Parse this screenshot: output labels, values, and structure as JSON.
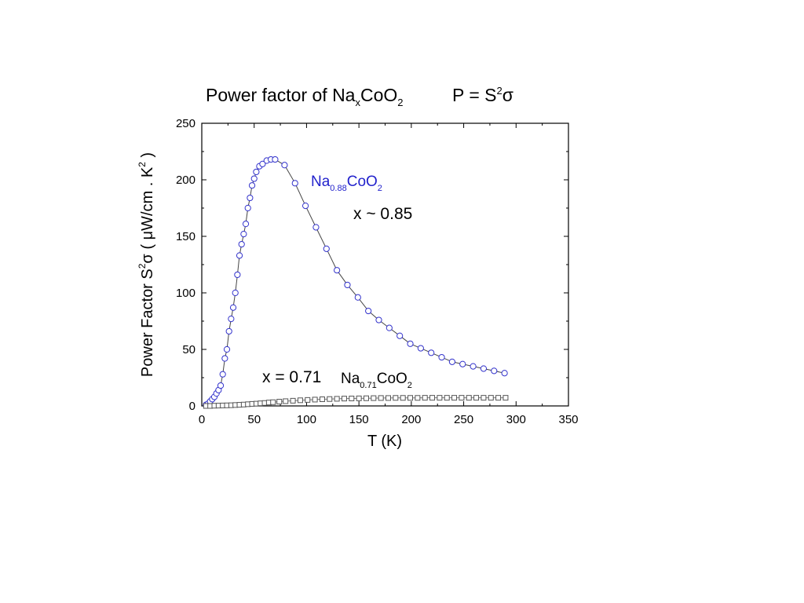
{
  "title": {
    "pre": "Power factor of Na",
    "sub1": "x",
    "mid": "CoO",
    "sub2": "2"
  },
  "formula": {
    "lhs": "P = S",
    "sup": "2",
    "rhs": "σ"
  },
  "chart_data": {
    "type": "scatter",
    "xlabel": "T (K)",
    "ylabel": {
      "main": "Power Factor S",
      "sup": "2",
      "sym": "σ ( μW/cm . K",
      "sup2": "2",
      "close": " )"
    },
    "xlim": [
      0,
      350
    ],
    "ylim": [
      0,
      250
    ],
    "xticks": [
      0,
      50,
      100,
      150,
      200,
      250,
      300,
      350
    ],
    "yticks": [
      0,
      50,
      100,
      150,
      200,
      250
    ],
    "grid": false,
    "series": [
      {
        "marker": "circle",
        "color": "#3333cc",
        "line": "#444444",
        "x": [
          4,
          6,
          8,
          10,
          12,
          14,
          16,
          18,
          20,
          22,
          24,
          26,
          28,
          30,
          32,
          34,
          36,
          38,
          40,
          42,
          44,
          46,
          48,
          50,
          52,
          55,
          58,
          62,
          66,
          70,
          79,
          89,
          99,
          109,
          119,
          129,
          139,
          149,
          159,
          169,
          179,
          189,
          199,
          209,
          219,
          229,
          239,
          249,
          259,
          269,
          279,
          289
        ],
        "y": [
          1,
          2,
          4,
          6,
          8,
          11,
          14,
          18,
          28,
          42,
          50,
          66,
          77,
          87,
          100,
          116,
          133,
          143,
          152,
          161,
          175,
          184,
          195,
          201,
          207,
          212,
          214,
          217,
          218,
          218,
          213,
          197,
          177,
          158,
          139,
          120,
          107,
          96,
          84,
          76,
          69,
          62,
          55,
          51,
          47,
          43,
          39,
          37,
          35,
          33,
          31,
          29
        ]
      },
      {
        "marker": "square",
        "color": "#555555",
        "line": "#777777",
        "x": [
          4,
          8,
          12,
          16,
          20,
          24,
          28,
          32,
          36,
          40,
          44,
          48,
          52,
          56,
          60,
          64,
          68,
          74,
          80,
          87,
          94,
          101,
          108,
          115,
          122,
          129,
          136,
          143,
          150,
          157,
          164,
          171,
          178,
          185,
          192,
          199,
          206,
          213,
          220,
          227,
          234,
          241,
          248,
          255,
          262,
          269,
          276,
          283,
          290
        ],
        "y": [
          0,
          0,
          0.2,
          0.3,
          0.4,
          0.5,
          0.6,
          0.8,
          1,
          1.2,
          1.5,
          1.8,
          2,
          2.3,
          2.6,
          3,
          3.3,
          3.8,
          4.2,
          4.6,
          5,
          5.3,
          5.6,
          5.9,
          6.1,
          6.3,
          6.5,
          6.6,
          6.7,
          6.8,
          6.9,
          7,
          7,
          7.1,
          7.1,
          7.1,
          7.1,
          7.2,
          7.2,
          7.2,
          7.2,
          7.2,
          7.2,
          7.2,
          7.2,
          7.2,
          7.2,
          7.2,
          7.2
        ]
      }
    ],
    "annotations": {
      "na88": {
        "pre": "Na",
        "sub1": "0.88",
        "mid": "CoO",
        "sub2": "2",
        "color": "#2222cc"
      },
      "x85": "x ~ 0.85",
      "x71": "x = 0.71",
      "na71": {
        "pre": "Na",
        "sub1": "0.71",
        "mid": "CoO",
        "sub2": "2"
      }
    }
  }
}
